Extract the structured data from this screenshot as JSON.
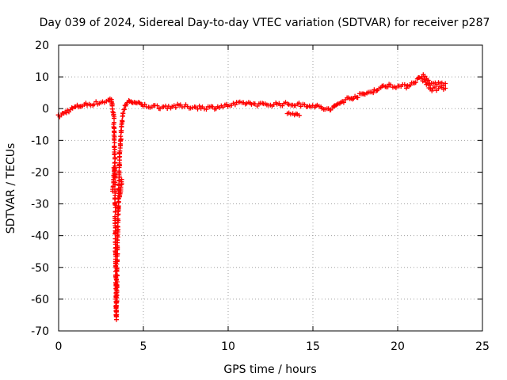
{
  "chart_data": {
    "type": "scatter",
    "title": "Day 039 of 2024, Sidereal Day-to-day VTEC variation (SDTVAR) for receiver p287",
    "xlabel": "GPS time / hours",
    "ylabel": "SDTVAR / TECUs",
    "xlim": [
      0,
      25
    ],
    "ylim": [
      -70,
      20
    ],
    "xticks": [
      "0",
      "5",
      "10",
      "15",
      "20",
      "25"
    ],
    "yticks": [
      "20",
      "10",
      "0",
      "-10",
      "-20",
      "-30",
      "-40",
      "-50",
      "-60",
      "-70"
    ],
    "grid": true,
    "marker": "plus",
    "color": "#ff0000",
    "series": [
      {
        "name": "SDTVAR",
        "anchors": [
          [
            0.0,
            -2.5
          ],
          [
            0.3,
            -1.5
          ],
          [
            0.6,
            -0.5
          ],
          [
            1.0,
            0.5
          ],
          [
            1.5,
            1.2
          ],
          [
            2.0,
            1.5
          ],
          [
            2.5,
            2.0
          ],
          [
            2.9,
            2.5
          ],
          [
            3.1,
            3.0
          ],
          [
            3.25,
            -2.0
          ],
          [
            3.3,
            -12.0
          ],
          [
            3.32,
            -25.0
          ],
          [
            3.35,
            -40.0
          ],
          [
            3.37,
            -55.0
          ],
          [
            3.4,
            -66.0
          ],
          [
            3.45,
            -48.0
          ],
          [
            3.5,
            -35.0
          ],
          [
            3.55,
            -25.0
          ],
          [
            3.6,
            -15.0
          ],
          [
            3.65,
            -10.0
          ],
          [
            3.7,
            -6.0
          ],
          [
            3.8,
            -1.0
          ],
          [
            3.9,
            0.5
          ],
          [
            4.0,
            1.5
          ],
          [
            4.2,
            2.5
          ],
          [
            4.4,
            2.0
          ],
          [
            4.7,
            1.5
          ],
          [
            5.0,
            1.0
          ],
          [
            6.0,
            0.5
          ],
          [
            7.0,
            0.8
          ],
          [
            8.0,
            0.5
          ],
          [
            9.0,
            0.3
          ],
          [
            10.0,
            1.0
          ],
          [
            11.0,
            1.8
          ],
          [
            12.0,
            1.2
          ],
          [
            13.0,
            1.5
          ],
          [
            14.0,
            1.3
          ],
          [
            15.0,
            1.0
          ],
          [
            16.0,
            -0.5
          ],
          [
            16.5,
            1.5
          ],
          [
            17.0,
            3.0
          ],
          [
            17.5,
            3.8
          ],
          [
            18.0,
            4.5
          ],
          [
            19.0,
            6.5
          ],
          [
            19.5,
            7.5
          ],
          [
            20.0,
            7.0
          ],
          [
            20.5,
            7.0
          ],
          [
            21.0,
            8.5
          ],
          [
            21.5,
            10.5
          ],
          [
            22.0,
            7.5
          ],
          [
            22.5,
            8.0
          ],
          [
            22.9,
            7.5
          ]
        ],
        "secondary_anchors": [
          [
            13.5,
            -1.5
          ],
          [
            14.0,
            -1.8
          ],
          [
            14.3,
            -2.0
          ],
          [
            21.5,
            9.0
          ],
          [
            22.0,
            6.0
          ],
          [
            22.5,
            6.5
          ],
          [
            22.9,
            6.0
          ],
          [
            3.2,
            -26.0
          ],
          [
            3.28,
            -18.0
          ],
          [
            3.6,
            -28.0
          ],
          [
            3.7,
            -24.0
          ],
          [
            3.75,
            -22.0
          ]
        ]
      }
    ]
  }
}
